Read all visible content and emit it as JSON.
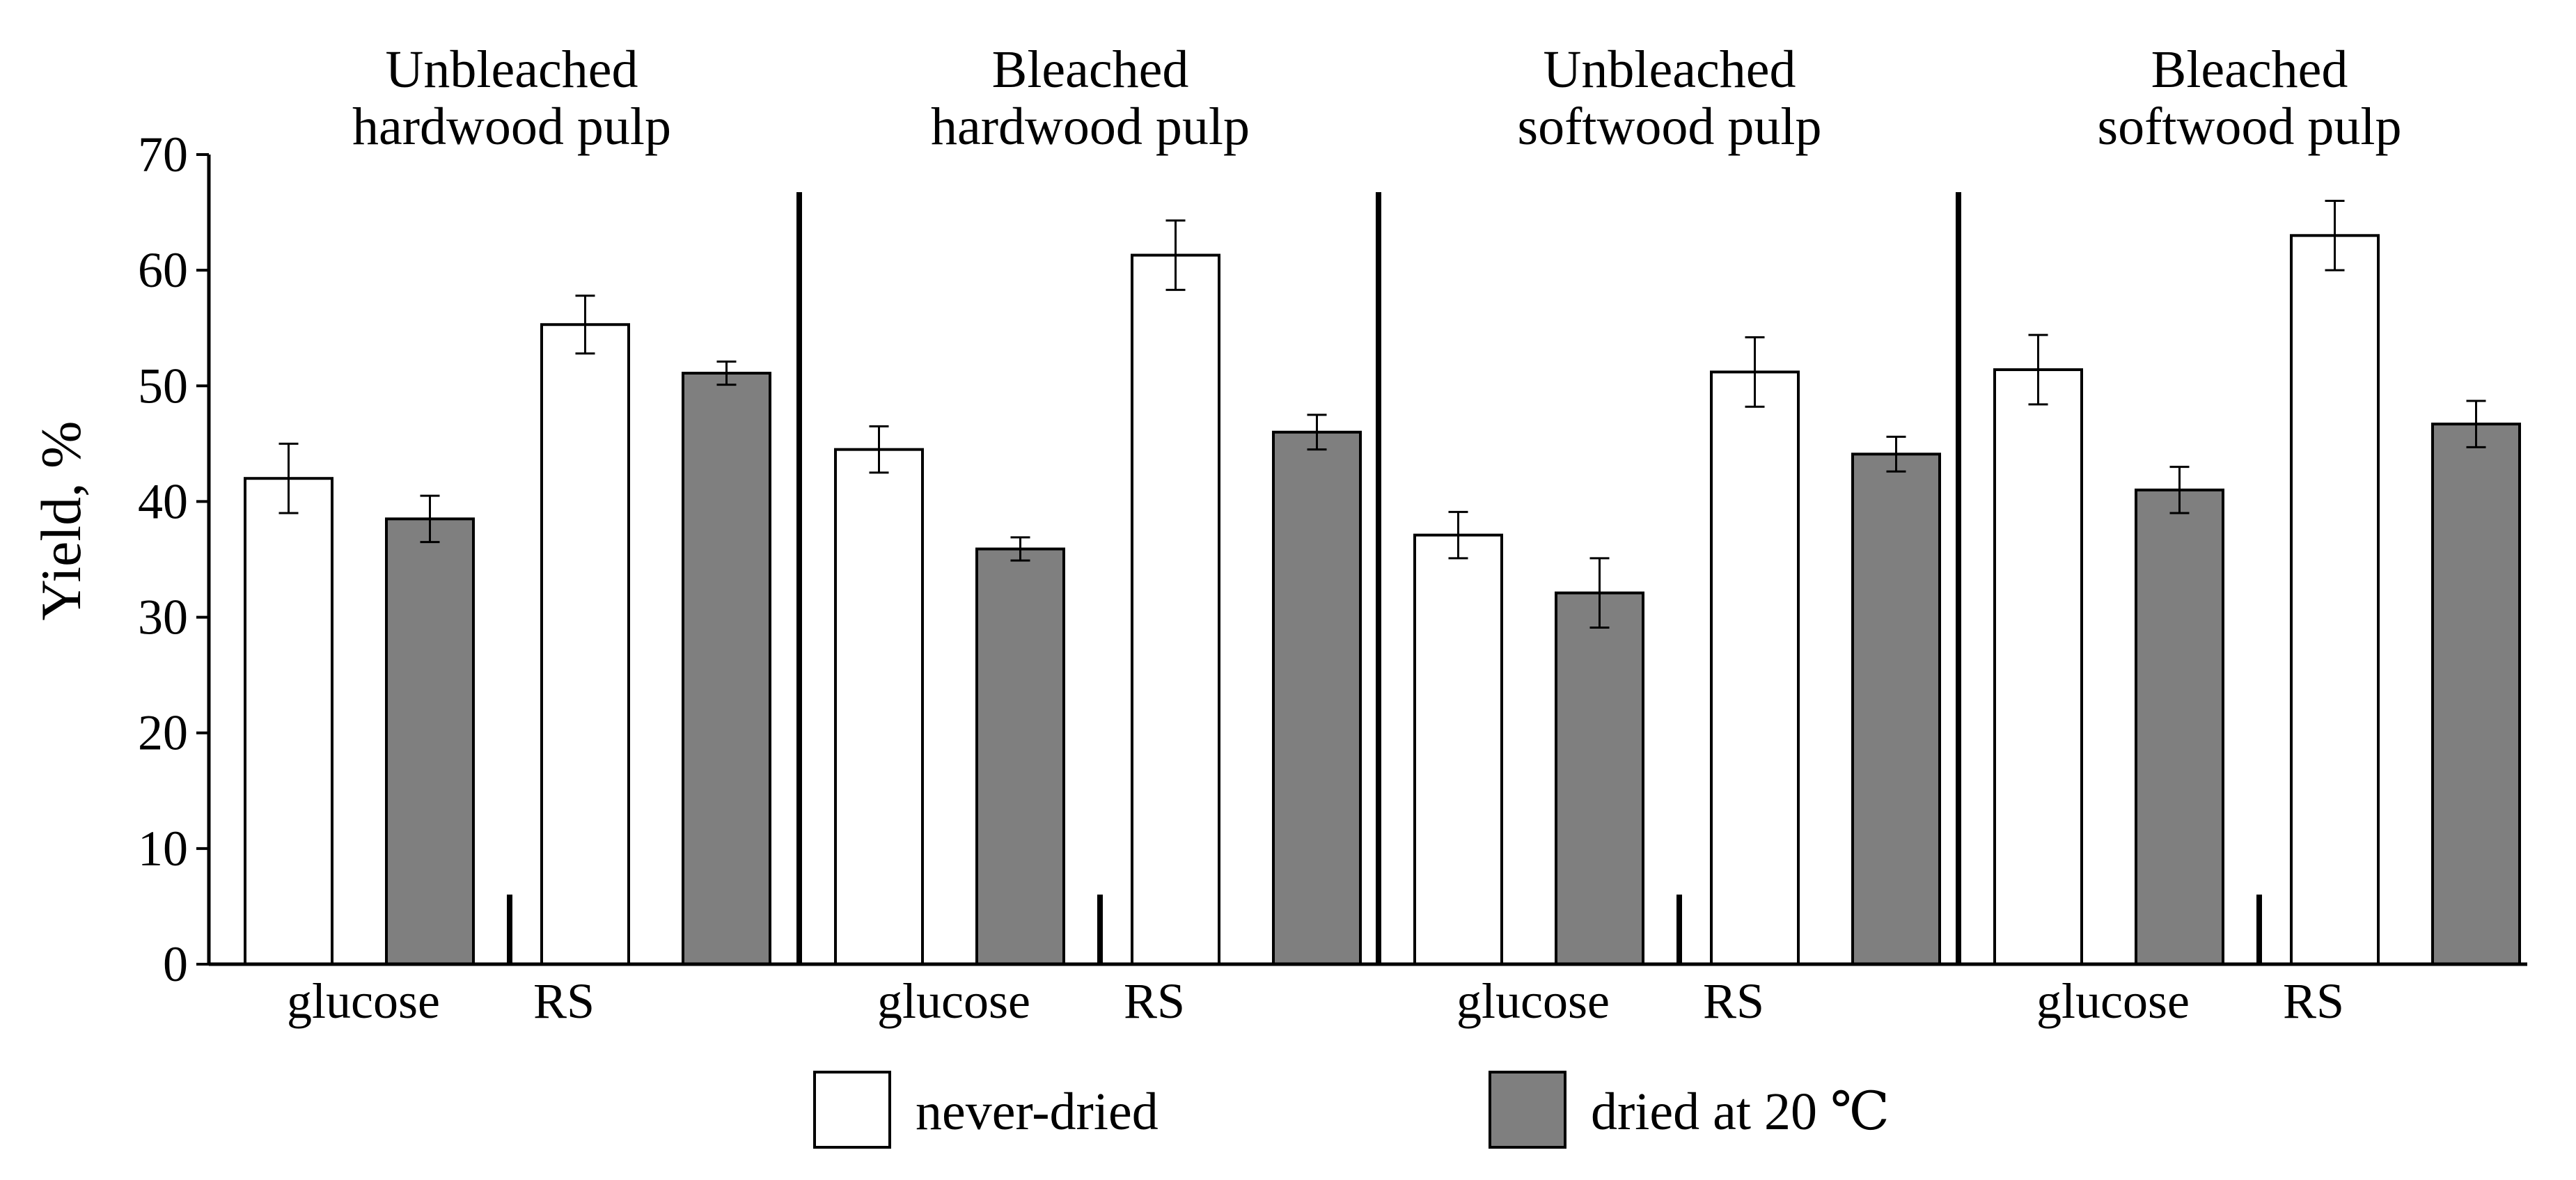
{
  "chart_data": {
    "type": "bar",
    "ylabel": "Yield, %",
    "xlabel": "",
    "ylim": [
      0,
      70
    ],
    "yticks": [
      0,
      10,
      20,
      30,
      40,
      50,
      60,
      70
    ],
    "grid": false,
    "legend_position": "bottom-center",
    "groups": [
      {
        "title_lines": [
          "Unbleached",
          "hardwood pulp"
        ],
        "categories": [
          "glucose",
          "RS"
        ],
        "values": {
          "never-dried": [
            42,
            55.3
          ],
          "dried at 20 ℃": [
            38.5,
            51.1
          ]
        },
        "errors": {
          "never-dried": [
            3.0,
            2.5
          ],
          "dried at 20 ℃": [
            2.0,
            1.0
          ]
        }
      },
      {
        "title_lines": [
          "Bleached",
          "hardwood pulp"
        ],
        "categories": [
          "glucose",
          "RS"
        ],
        "values": {
          "never-dried": [
            44.5,
            61.3
          ],
          "dried at 20 ℃": [
            35.9,
            46.0
          ]
        },
        "errors": {
          "never-dried": [
            2.0,
            3.0
          ],
          "dried at 20 ℃": [
            1.0,
            1.5
          ]
        }
      },
      {
        "title_lines": [
          "Unbleached",
          "softwood pulp"
        ],
        "categories": [
          "glucose",
          "RS"
        ],
        "values": {
          "never-dried": [
            37.1,
            51.2
          ],
          "dried at 20 ℃": [
            32.1,
            44.1
          ]
        },
        "errors": {
          "never-dried": [
            2.0,
            3.0
          ],
          "dried at 20 ℃": [
            3.0,
            1.5
          ]
        }
      },
      {
        "title_lines": [
          "Bleached",
          "softwood pulp"
        ],
        "categories": [
          "glucose",
          "RS"
        ],
        "values": {
          "never-dried": [
            51.4,
            63.0
          ],
          "dried at 20 ℃": [
            41.0,
            46.7
          ]
        },
        "errors": {
          "never-dried": [
            3.0,
            3.0
          ],
          "dried at 20 ℃": [
            2.0,
            2.0
          ]
        }
      }
    ],
    "series": [
      {
        "name": "never-dried",
        "color": "#ffffff"
      },
      {
        "name": "dried at 20 ℃",
        "color": "#7f7f7f"
      }
    ]
  },
  "legend": {
    "never_dried": "never-dried",
    "dried_prefix": "dried at 20 ",
    "dried_unit": "℃"
  }
}
